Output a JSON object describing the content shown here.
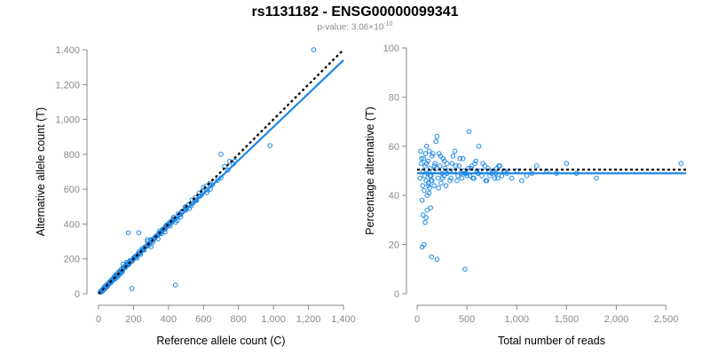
{
  "title": "rs1131182 - ENSG00000099341",
  "subtitle": {
    "label": "p-value: 3.06×10",
    "exponent": "-10"
  },
  "colors": {
    "points": "#1e88e5",
    "fit_line": "#1e88e5",
    "reference_line": "#000000",
    "axis": "#8a8a8a"
  },
  "chart_data": [
    {
      "type": "scatter",
      "xlabel": "Reference allele count (C)",
      "ylabel": "Alternative allele count (T)",
      "xlim": [
        0,
        1400
      ],
      "ylim": [
        0,
        1400
      ],
      "x_ticks": [
        0,
        200,
        400,
        600,
        800,
        1000,
        1200,
        1400
      ],
      "x_tick_labels": [
        "0",
        "200",
        "400",
        "600",
        "800",
        "1,000",
        "1,200",
        "1,400"
      ],
      "y_ticks": [
        0,
        200,
        400,
        600,
        800,
        1000,
        1200,
        1400
      ],
      "y_tick_labels": [
        "0",
        "200",
        "400",
        "600",
        "800",
        "1,000",
        "1,200",
        "1,400"
      ],
      "fit_line": {
        "x": [
          0,
          1400
        ],
        "y": [
          0,
          1340
        ],
        "style": "solid"
      },
      "reference_line": {
        "x": [
          0,
          1400
        ],
        "y": [
          0,
          1400
        ],
        "style": "dotted"
      },
      "points": {
        "x": [
          10,
          14,
          18,
          22,
          26,
          30,
          34,
          38,
          42,
          46,
          50,
          55,
          60,
          65,
          70,
          75,
          80,
          85,
          90,
          95,
          100,
          105,
          110,
          115,
          120,
          125,
          130,
          135,
          140,
          150,
          160,
          170,
          180,
          190,
          200,
          210,
          220,
          230,
          240,
          250,
          260,
          270,
          280,
          290,
          300,
          310,
          320,
          330,
          340,
          350,
          360,
          370,
          380,
          390,
          400,
          410,
          420,
          430,
          440,
          460,
          480,
          500,
          520,
          540,
          560,
          580,
          600,
          620,
          640,
          680,
          700,
          720,
          750,
          780,
          980,
          1230,
          440,
          170,
          190,
          230,
          20,
          30,
          40,
          50,
          60,
          70,
          80,
          90,
          100,
          110,
          120,
          130,
          140,
          150,
          160,
          170,
          180,
          200,
          220,
          240,
          260,
          280,
          300,
          320,
          340,
          360,
          380,
          400,
          420,
          440,
          470,
          500,
          530,
          560,
          590,
          620,
          650,
          700,
          740,
          770,
          140,
          160,
          280,
          300,
          380,
          450,
          470,
          500,
          25,
          35,
          45,
          55,
          65,
          75,
          85,
          95,
          105,
          115,
          125,
          135,
          145,
          155,
          165,
          175,
          185,
          195,
          205,
          215,
          225,
          235,
          245,
          255,
          265,
          275,
          285,
          295,
          305,
          315,
          325,
          335,
          345,
          355,
          365,
          375,
          385,
          395,
          405,
          415,
          425,
          435,
          455,
          475,
          495,
          515,
          535,
          555,
          575,
          595,
          615,
          635
        ],
        "y": [
          12,
          8,
          20,
          15,
          28,
          25,
          40,
          30,
          45,
          38,
          55,
          48,
          60,
          70,
          65,
          80,
          75,
          90,
          100,
          85,
          110,
          95,
          120,
          105,
          130,
          115,
          140,
          125,
          150,
          160,
          170,
          165,
          190,
          185,
          200,
          215,
          205,
          240,
          225,
          260,
          250,
          270,
          300,
          280,
          310,
          295,
          320,
          330,
          315,
          360,
          345,
          370,
          380,
          395,
          400,
          390,
          420,
          440,
          410,
          450,
          470,
          500,
          490,
          520,
          540,
          560,
          610,
          580,
          600,
          650,
          800,
          730,
          760,
          760,
          850,
          1400,
          50,
          350,
          30,
          350,
          18,
          22,
          38,
          42,
          58,
          62,
          78,
          82,
          98,
          102,
          118,
          128,
          138,
          152,
          168,
          178,
          188,
          205,
          218,
          235,
          258,
          282,
          305,
          318,
          338,
          355,
          372,
          395,
          412,
          430,
          455,
          488,
          505,
          535,
          570,
          595,
          625,
          665,
          710,
          745,
          170,
          180,
          310,
          270,
          355,
          420,
          440,
          480,
          24,
          33,
          47,
          52,
          68,
          72,
          88,
          92,
          108,
          112,
          128,
          132,
          148,
          152,
          168,
          172,
          188,
          192,
          208,
          212,
          228,
          232,
          248,
          252,
          268,
          272,
          288,
          292,
          308,
          312,
          328,
          332,
          348,
          352,
          368,
          372,
          388,
          392,
          408,
          412,
          428,
          432,
          458,
          472,
          498,
          512,
          538,
          552,
          578,
          592,
          618,
          632
        ]
      }
    },
    {
      "type": "scatter",
      "xlabel": "Total number of reads",
      "ylabel": "Percentage alternative (T)",
      "xlim": [
        0,
        2700
      ],
      "ylim": [
        0,
        100
      ],
      "x_ticks": [
        0,
        500,
        1000,
        1500,
        2000,
        2500
      ],
      "x_tick_labels": [
        "0",
        "500",
        "1,000",
        "1,500",
        "2,000",
        "2,500"
      ],
      "y_ticks": [
        0,
        20,
        40,
        60,
        80,
        100
      ],
      "y_tick_labels": [
        "0",
        "20",
        "40",
        "60",
        "80",
        "100"
      ],
      "fit_line": {
        "x": [
          0,
          2700
        ],
        "y": [
          49,
          49
        ],
        "style": "solid"
      },
      "reference_line": {
        "x": [
          0,
          2700
        ],
        "y": [
          50.5,
          50.5
        ],
        "style": "dotted"
      },
      "points": {
        "x": [
          30,
          40,
          50,
          55,
          60,
          65,
          70,
          75,
          80,
          85,
          90,
          95,
          100,
          105,
          110,
          115,
          120,
          125,
          130,
          135,
          140,
          145,
          150,
          160,
          170,
          180,
          190,
          200,
          210,
          220,
          230,
          240,
          250,
          260,
          270,
          280,
          290,
          300,
          320,
          340,
          360,
          380,
          400,
          420,
          440,
          460,
          480,
          500,
          520,
          540,
          560,
          580,
          600,
          620,
          650,
          680,
          700,
          720,
          750,
          780,
          800,
          820,
          850,
          880,
          900,
          950,
          1000,
          1050,
          1100,
          1150,
          1200,
          1300,
          1400,
          1500,
          1800,
          2650,
          480,
          200,
          160,
          140,
          120,
          100,
          90,
          80,
          70,
          60,
          50,
          45,
          35,
          95,
          110,
          130,
          150,
          175,
          195,
          215,
          235,
          255,
          275,
          300,
          330,
          350,
          370,
          390,
          410,
          430,
          450,
          470,
          490,
          510,
          530,
          550,
          570,
          590,
          610,
          630,
          660,
          690,
          710,
          730,
          760,
          790,
          810,
          830,
          870,
          1600
        ],
        "y": [
          47,
          53,
          38,
          44,
          50,
          55,
          42,
          48,
          52,
          57,
          46,
          60,
          40,
          49,
          54,
          45,
          58,
          43,
          51,
          35,
          48,
          15,
          56,
          50,
          44,
          53,
          62,
          14,
          47,
          57,
          52,
          45,
          49,
          55,
          48,
          51,
          44,
          53,
          50,
          47,
          56,
          58,
          46,
          52,
          49,
          55,
          10,
          48,
          66,
          51,
          47,
          53,
          50,
          60,
          48,
          52,
          46,
          50,
          49,
          47,
          51,
          52,
          48,
          50,
          49,
          47,
          50,
          46,
          48,
          49,
          52,
          50,
          49,
          53,
          47,
          53,
          49,
          64,
          57,
          46,
          41,
          34,
          31,
          29,
          20,
          32,
          19,
          55,
          58,
          53,
          44,
          48,
          46,
          52,
          51,
          43,
          56,
          47,
          54,
          49,
          46,
          53,
          50,
          52,
          48,
          55,
          47,
          50,
          49,
          51,
          48,
          52,
          47,
          54,
          49,
          50,
          53,
          46,
          51,
          48,
          50,
          49,
          47,
          52,
          50,
          49
        ]
      }
    }
  ]
}
